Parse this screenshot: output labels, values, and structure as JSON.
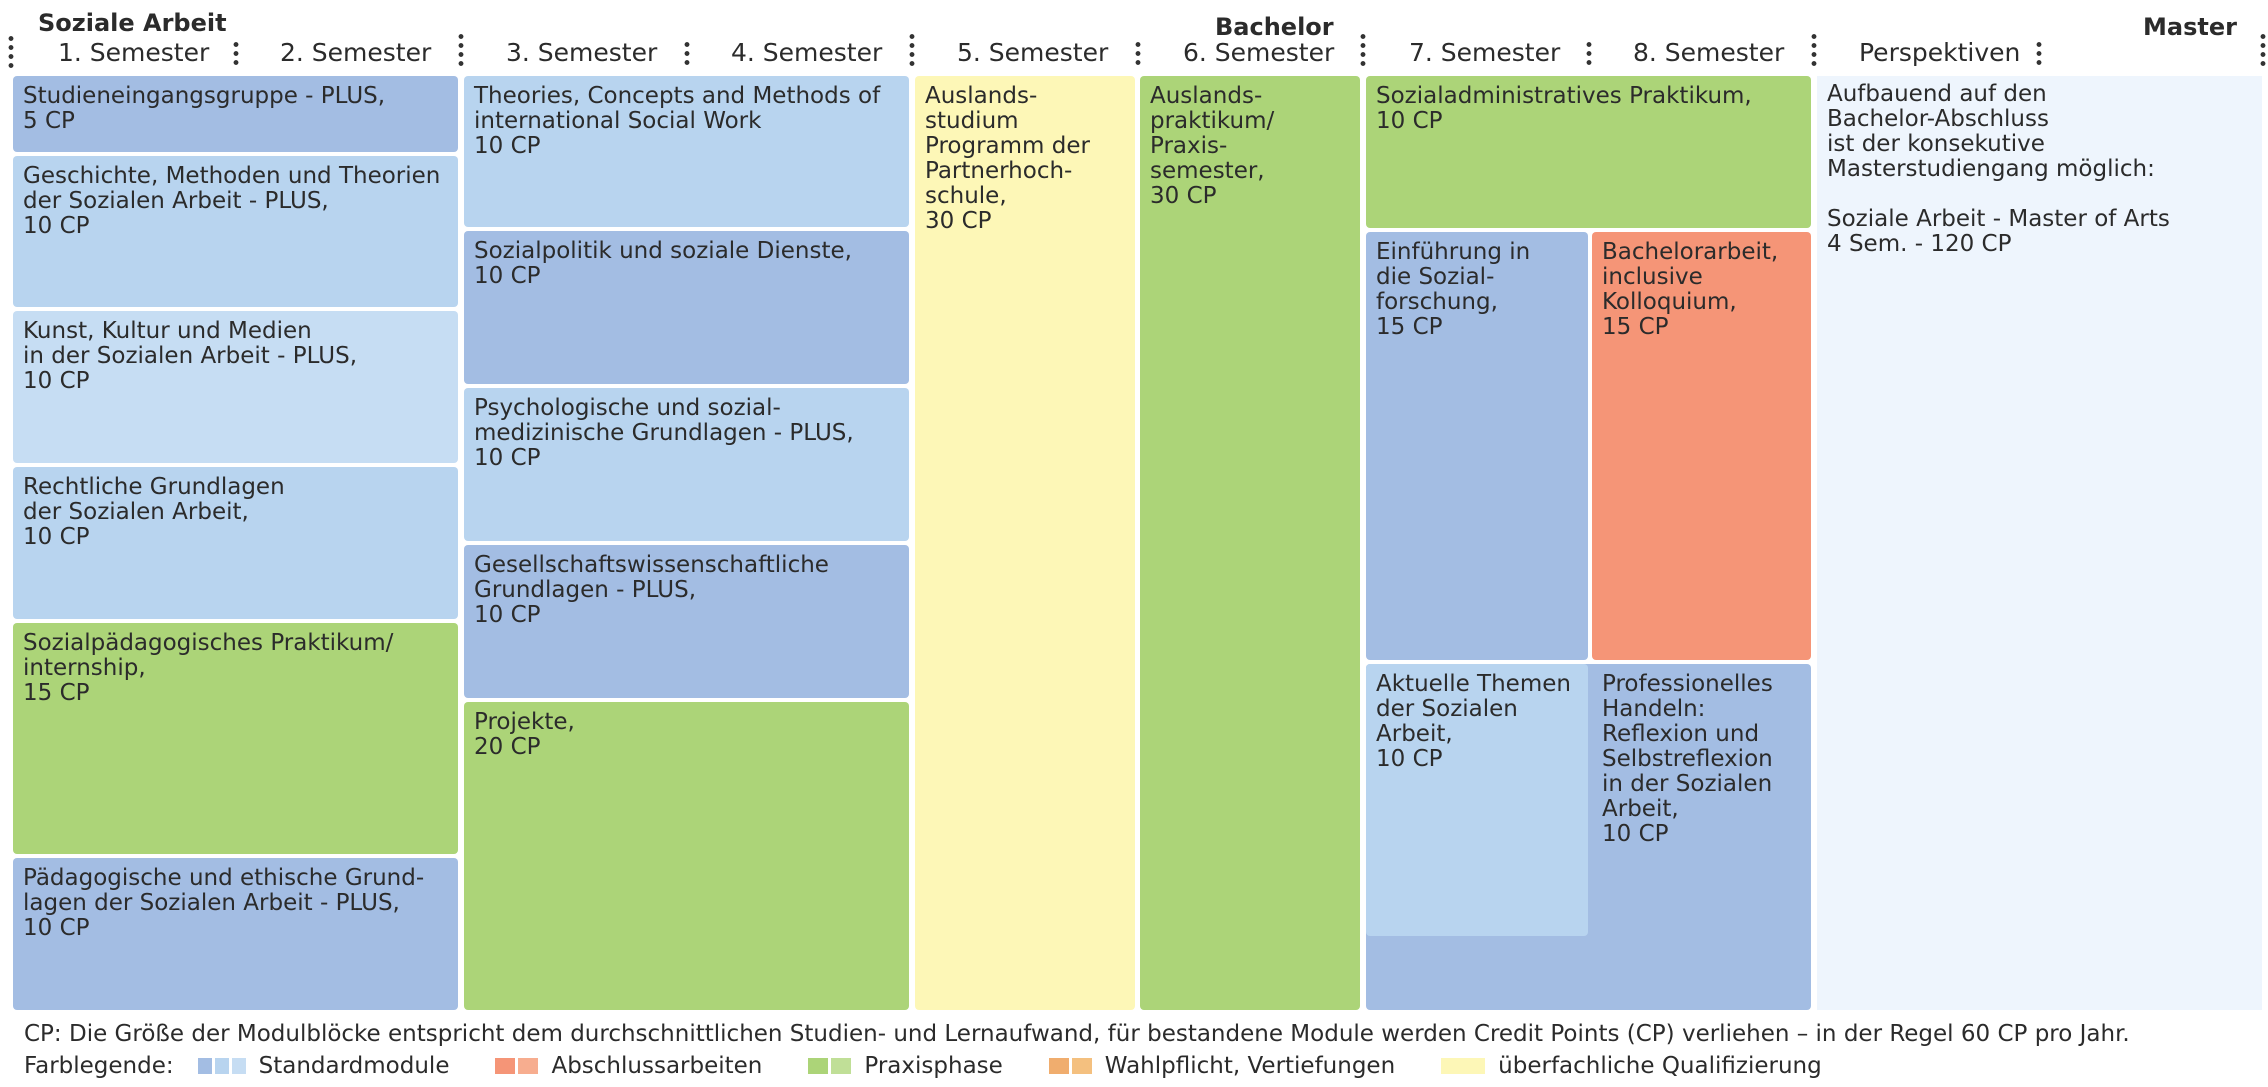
{
  "header": {
    "program": "Soziale Arbeit",
    "bachelor": "Bachelor",
    "master": "Master",
    "semesters": [
      "1. Semester",
      "2. Semester",
      "3. Semester",
      "4. Semester",
      "5. Semester",
      "6. Semester",
      "7. Semester",
      "8. Semester"
    ],
    "perspectives": "Perspektiven"
  },
  "modules": {
    "m1": "Studieneingangsgruppe - PLUS,\n5 CP",
    "m2": "Geschichte, Methoden und Theorien\nder Sozialen Arbeit - PLUS,\n10 CP",
    "m3": "Kunst, Kultur und Medien\nin der Sozialen Arbeit - PLUS,\n10 CP",
    "m4": "Rechtliche Grundlagen\nder Sozialen Arbeit,\n10 CP",
    "m5": "Sozialpädagogisches Praktikum/\ninternship,\n15 CP",
    "m6": "Pädagogische und ethische Grund-\nlagen der Sozialen Arbeit - PLUS,\n10 CP",
    "m7": "Theories, Concepts and Methods of\ninternational Social Work\n10 CP",
    "m8": "Sozialpolitik und soziale Dienste,\n10 CP",
    "m9": "Psychologische und sozial-\nmedizinische Grundlagen - PLUS,\n10 CP",
    "m10": "Gesellschaftswissenschaftliche\nGrundlagen - PLUS,\n10 CP",
    "m11": "Projekte,\n20 CP",
    "m12": "Auslands-\nstudium\nProgramm der\nPartnerhoch-\nschule,\n30 CP",
    "m13": "Auslands-\npraktikum/\nPraxis-\nsemester,\n30 CP",
    "m14": "Sozialadministratives Praktikum,\n10 CP",
    "m15": "Einführung in\ndie Sozial-\nforschung,\n15 CP",
    "m16": "Bachelorarbeit,\ninclusive\nKolloquium,\n15 CP",
    "m17": "Aktuelle Themen\nder Sozialen\nArbeit,\n10 CP",
    "m18": "Professionelles\nHandeln:\nReflexion und\nSelbstreflexion\nin der Sozialen\nArbeit,\n10 CP",
    "perspective_text": "Aufbauend auf den\nBachelor-Abschluss\nist der konsekutive\nMasterstudiengang möglich:\n\nSoziale Arbeit - Master of Arts\n4 Sem. - 120 CP"
  },
  "footer": {
    "note": "CP: Die Größe der Modulblöcke entspricht dem durchschnittlichen Studien- und Lernaufwand, für bestandene Module werden Credit Points (CP) verliehen – in der Regel 60 CP pro Jahr.",
    "legend_title": "Farblegende:",
    "legend": [
      {
        "label": "Standardmodule",
        "colors": [
          "#a3bde3",
          "#b8d4ef",
          "#c6ddf3"
        ]
      },
      {
        "label": "Abschlussarbeiten",
        "colors": [
          "#f59577",
          "#f7ad8f"
        ]
      },
      {
        "label": "Praxisphase",
        "colors": [
          "#acd478",
          "#c0df97"
        ]
      },
      {
        "label": "Wahlpflicht, Vertiefungen",
        "colors": [
          "#f0ad6e",
          "#f4c07f"
        ]
      },
      {
        "label": "überfachliche Qualifizierung",
        "colors": [
          "#fdf7b7"
        ]
      }
    ]
  }
}
